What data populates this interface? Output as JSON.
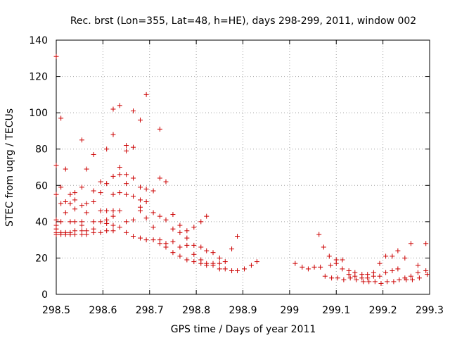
{
  "chart_data": {
    "type": "scatter",
    "title": "Rec. brst (Lon=355, Lat=48, h=HE), days 298-299, 2011, window 002",
    "xlabel": "GPS time / Days of year 2011",
    "ylabel": "STEC from uqrg / TECUs",
    "xlim": [
      298.5,
      299.3
    ],
    "ylim": [
      0,
      140
    ],
    "xticks": [
      298.5,
      298.6,
      298.7,
      298.8,
      298.9,
      299.0,
      299.1,
      299.2,
      299.3
    ],
    "xtick_labels": [
      "298.5",
      "298.6",
      "298.7",
      "298.8",
      "298.9",
      "299",
      "299.1",
      "299.2",
      "299.3"
    ],
    "yticks": [
      0,
      20,
      40,
      60,
      80,
      100,
      120,
      140
    ],
    "ytick_labels": [
      "0",
      "20",
      "40",
      "60",
      "80",
      "100",
      "120",
      "140"
    ],
    "grid": true,
    "marker": "+",
    "series_color": "#cc0000",
    "points": [
      [
        298.5,
        131
      ],
      [
        298.5,
        71
      ],
      [
        298.5,
        55
      ],
      [
        298.5,
        41
      ],
      [
        298.5,
        38
      ],
      [
        298.5,
        36
      ],
      [
        298.5,
        34
      ],
      [
        298.5,
        33
      ],
      [
        298.51,
        97
      ],
      [
        298.51,
        59
      ],
      [
        298.51,
        50
      ],
      [
        298.51,
        40
      ],
      [
        298.51,
        34
      ],
      [
        298.51,
        33
      ],
      [
        298.52,
        69
      ],
      [
        298.52,
        51
      ],
      [
        298.52,
        45
      ],
      [
        298.52,
        34
      ],
      [
        298.52,
        33
      ],
      [
        298.53,
        55
      ],
      [
        298.53,
        50
      ],
      [
        298.53,
        40
      ],
      [
        298.53,
        34
      ],
      [
        298.53,
        33
      ],
      [
        298.54,
        56
      ],
      [
        298.54,
        52
      ],
      [
        298.54,
        47
      ],
      [
        298.54,
        40
      ],
      [
        298.54,
        35
      ],
      [
        298.54,
        33
      ],
      [
        298.555,
        85
      ],
      [
        298.555,
        59
      ],
      [
        298.555,
        49
      ],
      [
        298.555,
        40
      ],
      [
        298.555,
        38
      ],
      [
        298.555,
        35
      ],
      [
        298.555,
        33
      ],
      [
        298.565,
        69
      ],
      [
        298.565,
        50
      ],
      [
        298.565,
        45
      ],
      [
        298.565,
        35
      ],
      [
        298.565,
        33
      ],
      [
        298.58,
        77
      ],
      [
        298.58,
        57
      ],
      [
        298.58,
        51
      ],
      [
        298.58,
        40
      ],
      [
        298.58,
        36
      ],
      [
        298.58,
        34
      ],
      [
        298.595,
        62
      ],
      [
        298.595,
        56
      ],
      [
        298.595,
        46
      ],
      [
        298.595,
        40
      ],
      [
        298.595,
        34
      ],
      [
        298.608,
        80
      ],
      [
        298.608,
        61
      ],
      [
        298.608,
        46
      ],
      [
        298.608,
        41
      ],
      [
        298.608,
        39
      ],
      [
        298.608,
        35
      ],
      [
        298.622,
        102
      ],
      [
        298.622,
        88
      ],
      [
        298.622,
        65
      ],
      [
        298.622,
        55
      ],
      [
        298.622,
        46
      ],
      [
        298.622,
        43
      ],
      [
        298.622,
        38
      ],
      [
        298.622,
        35
      ],
      [
        298.636,
        104
      ],
      [
        298.636,
        70
      ],
      [
        298.636,
        66
      ],
      [
        298.636,
        56
      ],
      [
        298.636,
        46
      ],
      [
        298.636,
        37
      ],
      [
        298.65,
        82
      ],
      [
        298.65,
        79
      ],
      [
        298.65,
        66
      ],
      [
        298.65,
        61
      ],
      [
        298.65,
        55
      ],
      [
        298.65,
        40
      ],
      [
        298.65,
        34
      ],
      [
        298.665,
        101
      ],
      [
        298.665,
        81
      ],
      [
        298.665,
        64
      ],
      [
        298.665,
        54
      ],
      [
        298.665,
        41
      ],
      [
        298.665,
        32
      ],
      [
        298.68,
        96
      ],
      [
        298.68,
        59
      ],
      [
        298.68,
        52
      ],
      [
        298.68,
        48
      ],
      [
        298.68,
        46
      ],
      [
        298.68,
        31
      ],
      [
        298.693,
        110
      ],
      [
        298.693,
        58
      ],
      [
        298.693,
        51
      ],
      [
        298.693,
        42
      ],
      [
        298.693,
        30
      ],
      [
        298.708,
        57
      ],
      [
        298.708,
        45
      ],
      [
        298.708,
        37
      ],
      [
        298.708,
        30
      ],
      [
        298.722,
        91
      ],
      [
        298.722,
        64
      ],
      [
        298.722,
        43
      ],
      [
        298.722,
        30
      ],
      [
        298.722,
        28
      ],
      [
        298.735,
        62
      ],
      [
        298.735,
        41
      ],
      [
        298.735,
        28
      ],
      [
        298.735,
        26
      ],
      [
        298.75,
        44
      ],
      [
        298.75,
        36
      ],
      [
        298.75,
        29
      ],
      [
        298.75,
        23
      ],
      [
        298.765,
        38
      ],
      [
        298.765,
        34
      ],
      [
        298.765,
        26
      ],
      [
        298.765,
        21
      ],
      [
        298.78,
        35
      ],
      [
        298.78,
        31
      ],
      [
        298.78,
        27
      ],
      [
        298.78,
        19
      ],
      [
        298.795,
        37
      ],
      [
        298.795,
        27
      ],
      [
        298.795,
        22
      ],
      [
        298.795,
        18
      ],
      [
        298.81,
        40
      ],
      [
        298.81,
        26
      ],
      [
        298.81,
        19
      ],
      [
        298.81,
        17
      ],
      [
        298.822,
        43
      ],
      [
        298.822,
        24
      ],
      [
        298.822,
        17
      ],
      [
        298.822,
        16
      ],
      [
        298.836,
        23
      ],
      [
        298.836,
        17
      ],
      [
        298.836,
        16
      ],
      [
        298.85,
        20
      ],
      [
        298.85,
        17
      ],
      [
        298.85,
        14
      ],
      [
        298.862,
        18
      ],
      [
        298.862,
        14
      ],
      [
        298.876,
        25
      ],
      [
        298.876,
        13
      ],
      [
        298.888,
        32
      ],
      [
        298.888,
        13
      ],
      [
        298.903,
        14
      ],
      [
        298.918,
        16
      ],
      [
        298.93,
        18
      ],
      [
        299.012,
        17
      ],
      [
        299.027,
        15
      ],
      [
        299.04,
        14
      ],
      [
        299.053,
        15
      ],
      [
        299.063,
        33
      ],
      [
        299.066,
        15
      ],
      [
        299.073,
        26
      ],
      [
        299.076,
        10
      ],
      [
        299.085,
        21
      ],
      [
        299.088,
        16
      ],
      [
        299.09,
        9
      ],
      [
        299.1,
        19
      ],
      [
        299.1,
        17
      ],
      [
        299.103,
        9
      ],
      [
        299.113,
        19
      ],
      [
        299.113,
        14
      ],
      [
        299.116,
        8
      ],
      [
        299.127,
        13
      ],
      [
        299.127,
        11
      ],
      [
        299.13,
        9
      ],
      [
        299.14,
        12
      ],
      [
        299.14,
        10
      ],
      [
        299.143,
        8
      ],
      [
        299.155,
        11
      ],
      [
        299.155,
        9
      ],
      [
        299.158,
        7
      ],
      [
        299.167,
        11
      ],
      [
        299.167,
        9
      ],
      [
        299.17,
        7
      ],
      [
        299.18,
        12
      ],
      [
        299.18,
        10
      ],
      [
        299.183,
        7
      ],
      [
        299.193,
        17
      ],
      [
        299.193,
        10
      ],
      [
        299.196,
        6
      ],
      [
        299.206,
        21
      ],
      [
        299.206,
        12
      ],
      [
        299.209,
        7
      ],
      [
        299.22,
        21
      ],
      [
        299.22,
        13
      ],
      [
        299.223,
        7
      ],
      [
        299.232,
        24
      ],
      [
        299.232,
        14
      ],
      [
        299.235,
        8
      ],
      [
        299.247,
        20
      ],
      [
        299.247,
        9
      ],
      [
        299.25,
        8
      ],
      [
        299.26,
        28
      ],
      [
        299.26,
        10
      ],
      [
        299.263,
        8
      ],
      [
        299.275,
        16
      ],
      [
        299.275,
        12
      ],
      [
        299.278,
        9
      ],
      [
        299.292,
        28
      ],
      [
        299.292,
        13
      ],
      [
        299.295,
        11
      ]
    ]
  }
}
